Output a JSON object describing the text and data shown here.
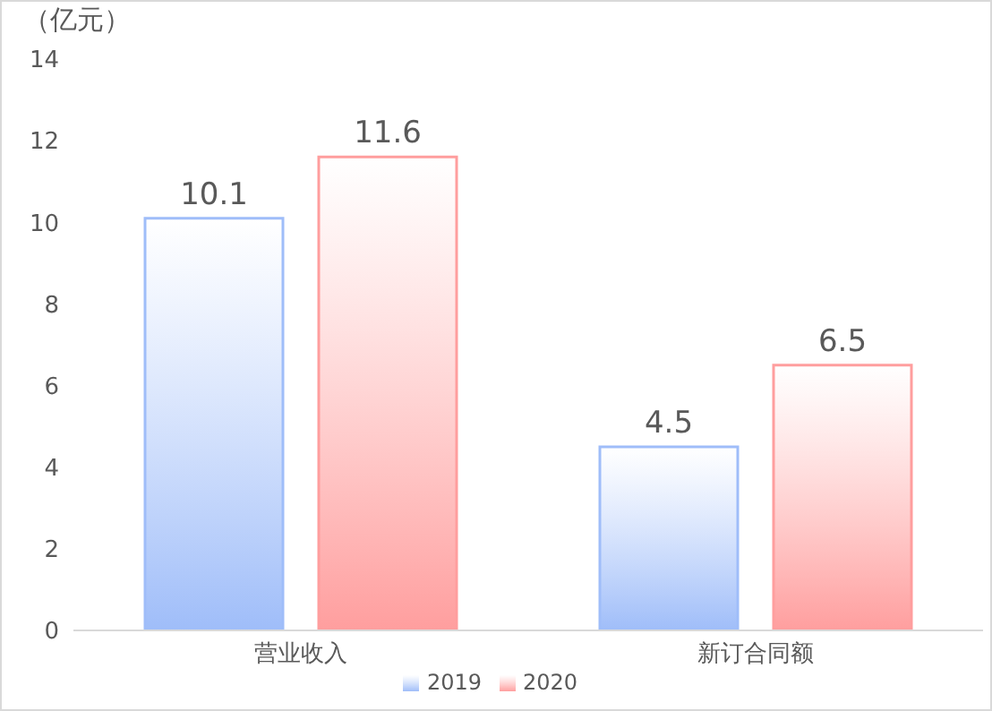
{
  "chart_data": {
    "type": "bar",
    "ylabel": "（亿元）",
    "categories": [
      "营业收入",
      "新订合同额"
    ],
    "series": [
      {
        "name": "2019",
        "color": "#9fbdf9",
        "values": [
          10.1,
          4.5
        ]
      },
      {
        "name": "2020",
        "color": "#ff9e9e",
        "values": [
          11.6,
          6.5
        ]
      }
    ],
    "ylim": [
      0,
      14
    ],
    "yticks": [
      0,
      2,
      4,
      6,
      8,
      10,
      12,
      14
    ],
    "data_labels": true,
    "legend": "bottom",
    "grid": false
  }
}
